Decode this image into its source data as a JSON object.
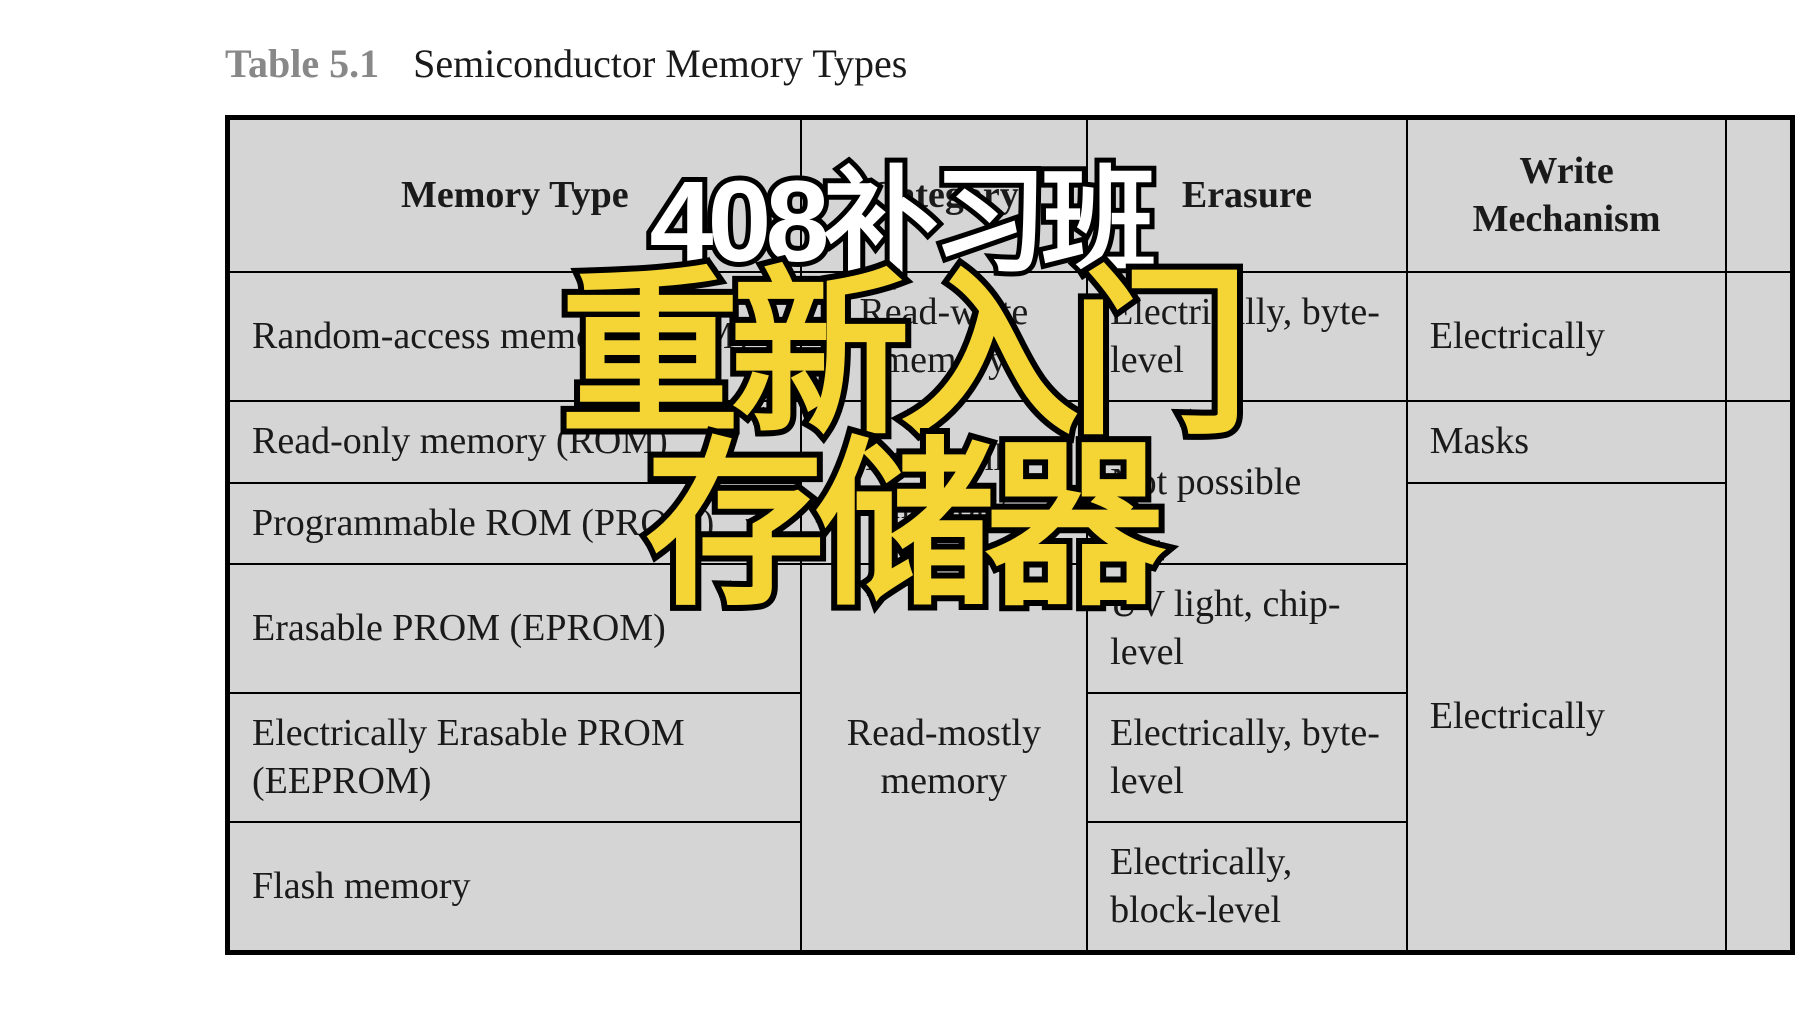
{
  "caption": {
    "label": "Table 5.1",
    "title": "Semiconductor Memory Types"
  },
  "headers": {
    "memory_type": "Memory Type",
    "category": "Category",
    "erasure": "Erasure",
    "write_mechanism": "Write Mechanism",
    "volatility": ""
  },
  "rows": {
    "ram": {
      "type": "Random-access memory (RAM)",
      "category": "Read-write memory",
      "erasure": "Electrically, byte-level",
      "write": "Electrically",
      "vol": ""
    },
    "rom": {
      "type": "Read-only memory (ROM)"
    },
    "prom": {
      "type": "Programmable ROM (PROM)"
    },
    "rom_category": "Read-only memory",
    "rom_erasure": "Not possible",
    "rom_write": "Masks",
    "eprom": {
      "type": "Erasable PROM (EPROM)",
      "erasure": "UV light, chip-level"
    },
    "eeprom": {
      "type": "Electrically Erasable PROM (EEPROM)",
      "erasure": "Electrically, byte-level"
    },
    "flash": {
      "type": "Flash memory",
      "erasure": "Electrically, block-level"
    },
    "readmostly_category": "Read-mostly memory",
    "readmostly_write": "Electrically",
    "nonvol": ""
  },
  "overlay": {
    "line1": "408补习班",
    "line2": "重新入门",
    "line3": "存储器"
  },
  "colors": {
    "table_bg": "#d5d5d5",
    "border": "#000000",
    "text": "#1a1a1a",
    "caption_label": "#888888",
    "overlay_line1_fill": "#ffffff",
    "overlay_main_fill": "#f5d535",
    "overlay_stroke": "#000000"
  },
  "typography": {
    "table_font": "Times New Roman serif",
    "overlay_font": "sans-serif heavy",
    "cell_fontsize_pt": 28,
    "header_fontsize_pt": 28,
    "caption_fontsize_pt": 30,
    "overlay_line1_pt": 86,
    "overlay_main_pt": 135
  }
}
